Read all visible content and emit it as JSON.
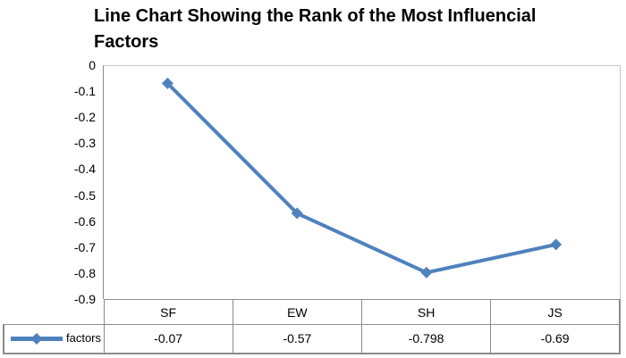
{
  "header": {
    "title_line1": "Line Chart Showing the Rank of the Most Influencial",
    "title_line2": "Factors"
  },
  "chart": {
    "legend_label": "factors",
    "colors": {
      "series_blue": "#4F81BD",
      "axis_gray": "#8C8C8C",
      "plot_border_gray": "#C9C9C9",
      "text_black": "#000000"
    }
  },
  "chart_data": {
    "type": "line",
    "title": "Line Chart Showing the Rank of the Most Influencial Factors",
    "xlabel": "",
    "ylabel": "",
    "categories": [
      "SF",
      "EW",
      "SH",
      "JS"
    ],
    "series": [
      {
        "name": "factors",
        "values": [
          -0.07,
          -0.57,
          -0.798,
          -0.69
        ],
        "value_labels": [
          "-0.07",
          "-0.57",
          "-0.798",
          "-0.69"
        ],
        "color": "#4F81BD",
        "marker": "diamond"
      }
    ],
    "ylim": [
      -0.9,
      0
    ],
    "y_ticks": [
      0,
      -0.1,
      -0.2,
      -0.3,
      -0.4,
      -0.5,
      -0.6,
      -0.7,
      -0.8,
      -0.9
    ],
    "y_tick_labels": [
      "0",
      "-0.1",
      "-0.2",
      "-0.3",
      "-0.4",
      "-0.5",
      "-0.6",
      "-0.7",
      "-0.8",
      "-0.9"
    ],
    "grid": false,
    "legend_position": "data-table-left"
  }
}
